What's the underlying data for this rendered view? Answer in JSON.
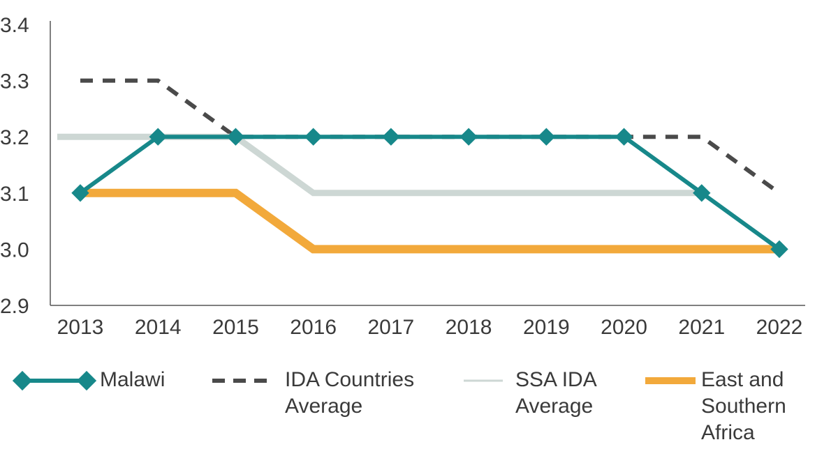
{
  "chart_data": {
    "type": "line",
    "title": "",
    "xlabel": "",
    "ylabel": "",
    "x": [
      "2013",
      "2014",
      "2015",
      "2016",
      "2017",
      "2018",
      "2019",
      "2020",
      "2021",
      "2022"
    ],
    "ylim": [
      2.9,
      3.4
    ],
    "yticks": [
      "2.9",
      "3.0",
      "3.1",
      "3.2",
      "3.3",
      "3.4"
    ],
    "grid": false,
    "legend_position": "bottom",
    "series": [
      {
        "name": "IDA Countries Average",
        "values": [
          3.3,
          3.3,
          3.2,
          3.2,
          3.2,
          3.2,
          3.2,
          3.2,
          3.2,
          3.1
        ],
        "color": "#4a4a4a",
        "style": "dashed"
      },
      {
        "name": "SSA IDA Average",
        "values": [
          3.2,
          3.2,
          3.2,
          3.1,
          3.1,
          3.1,
          3.1,
          3.1,
          3.1,
          null
        ],
        "color": "#cdd7d4",
        "style": "solid"
      },
      {
        "name": "East and Southern Africa",
        "values": [
          3.1,
          3.1,
          3.1,
          3.0,
          3.0,
          3.0,
          3.0,
          3.0,
          3.0,
          3.0
        ],
        "color": "#f2a93b",
        "style": "solid"
      },
      {
        "name": "Malawi",
        "values": [
          3.1,
          3.2,
          3.2,
          3.2,
          3.2,
          3.2,
          3.2,
          3.2,
          3.1,
          3.0
        ],
        "color": "#17888a",
        "style": "solid-diamond"
      }
    ]
  },
  "legend": [
    {
      "series_name": "Malawi",
      "label": "Malawi"
    },
    {
      "series_name": "IDA Countries Average",
      "label": "IDA Countries\nAverage"
    },
    {
      "series_name": "SSA IDA Average",
      "label": "SSA IDA\nAverage"
    },
    {
      "series_name": "East and Southern Africa",
      "label": "East and\nSouthern\nAfrica"
    }
  ]
}
